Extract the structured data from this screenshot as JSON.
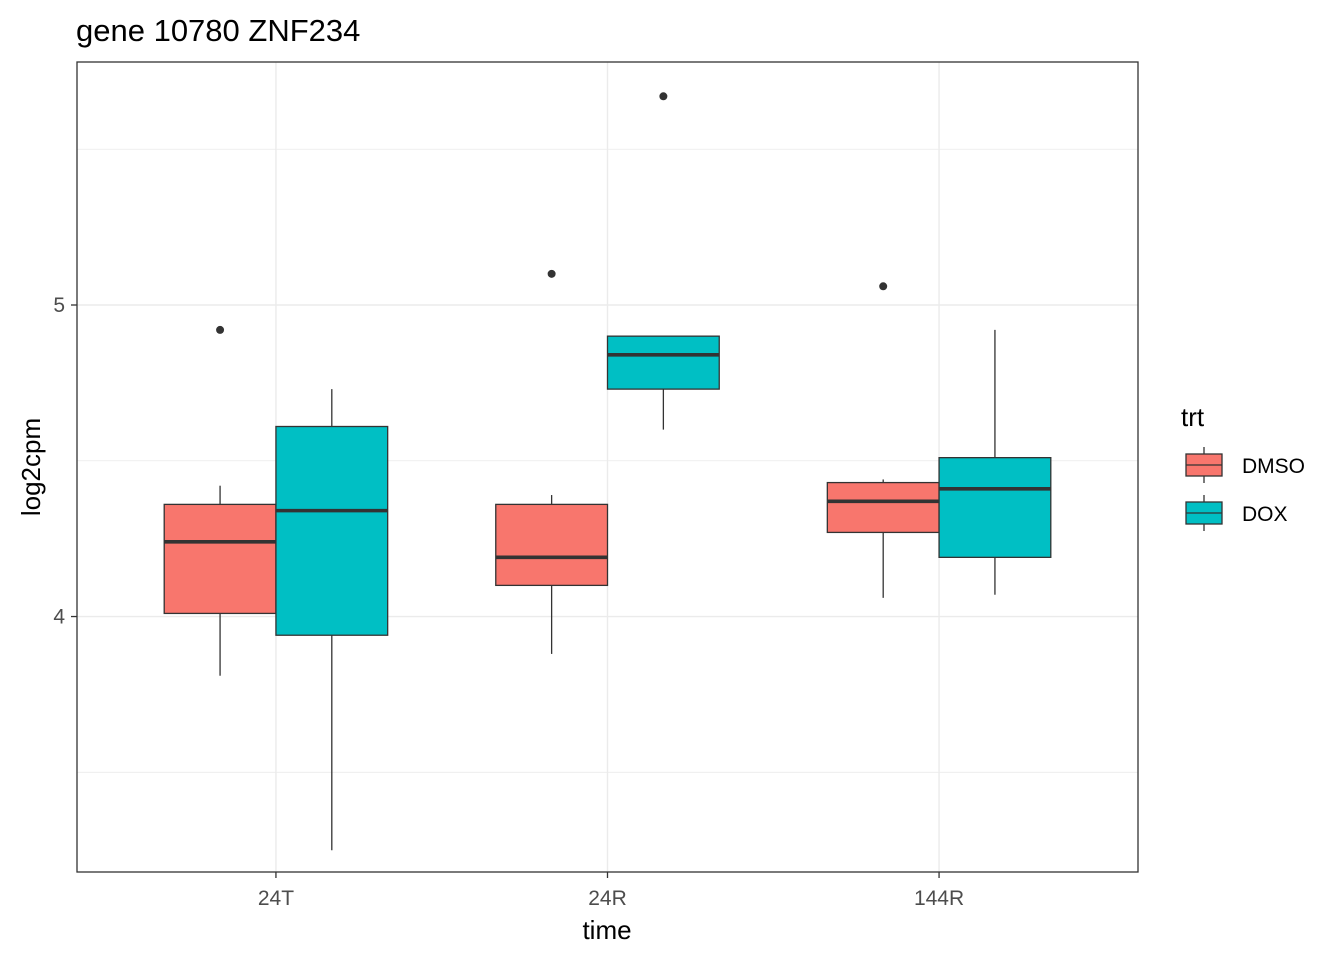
{
  "chart_data": {
    "type": "boxplot",
    "title": "gene 10780 ZNF234",
    "xlabel": "time",
    "ylabel": "log2cpm",
    "categories": [
      "24T",
      "24R",
      "144R"
    ],
    "ylim": [
      3.18,
      5.78
    ],
    "yticks": [
      4,
      5
    ],
    "grid": true,
    "legend": {
      "title": "trt",
      "position": "right",
      "entries": [
        "DMSO",
        "DOX"
      ]
    },
    "series": [
      {
        "name": "DMSO",
        "color": "#F8766D",
        "boxes": [
          {
            "category": "24T",
            "whisker_low": 3.81,
            "q1": 4.01,
            "median": 4.24,
            "q3": 4.36,
            "whisker_high": 4.42,
            "outliers": [
              4.92
            ]
          },
          {
            "category": "24R",
            "whisker_low": 3.88,
            "q1": 4.1,
            "median": 4.19,
            "q3": 4.36,
            "whisker_high": 4.39,
            "outliers": [
              5.1
            ]
          },
          {
            "category": "144R",
            "whisker_low": 4.06,
            "q1": 4.27,
            "median": 4.37,
            "q3": 4.43,
            "whisker_high": 4.44,
            "outliers": [
              5.06
            ]
          }
        ]
      },
      {
        "name": "DOX",
        "color": "#00BFC4",
        "boxes": [
          {
            "category": "24T",
            "whisker_low": 3.25,
            "q1": 3.94,
            "median": 4.34,
            "q3": 4.61,
            "whisker_high": 4.73,
            "outliers": []
          },
          {
            "category": "24R",
            "whisker_low": 4.6,
            "q1": 4.73,
            "median": 4.84,
            "q3": 4.9,
            "whisker_high": 4.9,
            "outliers": [
              5.67
            ]
          },
          {
            "category": "144R",
            "whisker_low": 4.07,
            "q1": 4.19,
            "median": 4.41,
            "q3": 4.51,
            "whisker_high": 4.92,
            "outliers": []
          }
        ]
      }
    ]
  }
}
